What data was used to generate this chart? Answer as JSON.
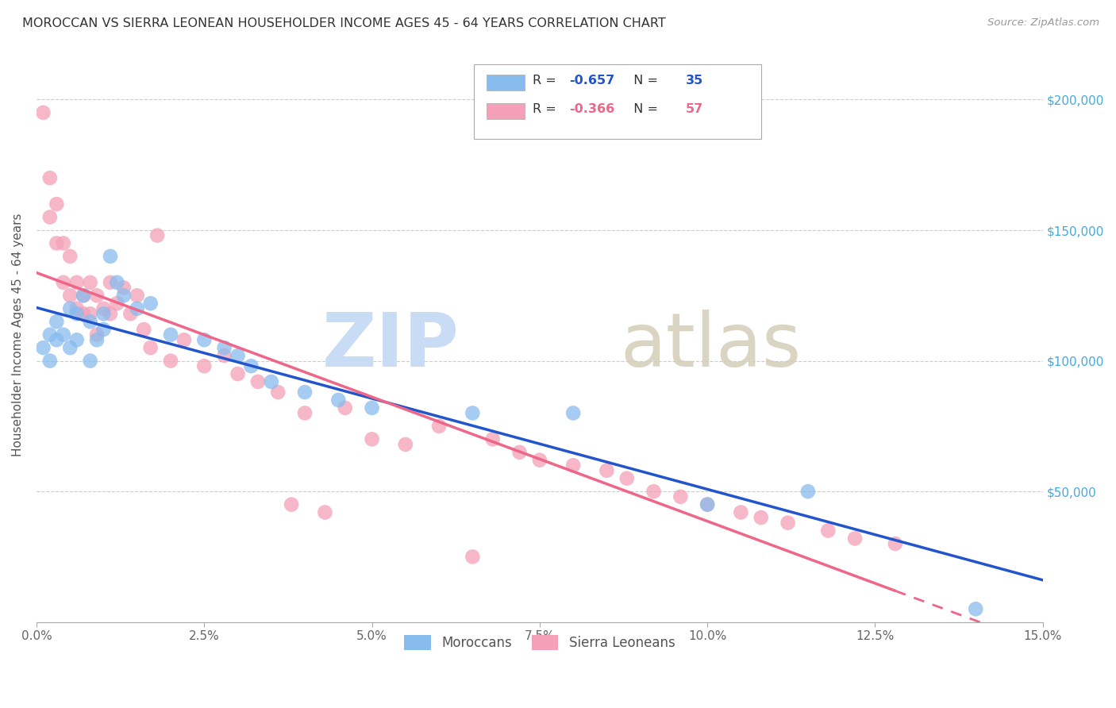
{
  "title": "MOROCCAN VS SIERRA LEONEAN HOUSEHOLDER INCOME AGES 45 - 64 YEARS CORRELATION CHART",
  "source": "Source: ZipAtlas.com",
  "ylabel": "Householder Income Ages 45 - 64 years",
  "xlim": [
    0.0,
    0.15
  ],
  "ylim": [
    0,
    220000
  ],
  "ytick_positions": [
    0,
    50000,
    100000,
    150000,
    200000
  ],
  "ytick_labels": [
    "",
    "$50,000",
    "$100,000",
    "$150,000",
    "$200,000"
  ],
  "xtick_positions": [
    0.0,
    0.025,
    0.05,
    0.075,
    0.1,
    0.125,
    0.15
  ],
  "xtick_labels": [
    "0.0%",
    "2.5%",
    "5.0%",
    "7.5%",
    "10.0%",
    "12.5%",
    "15.0%"
  ],
  "moroccan_color": "#88bbee",
  "sierra_color": "#f4a0b8",
  "moroccan_R": -0.657,
  "moroccan_N": 35,
  "sierra_R": -0.366,
  "sierra_N": 57,
  "moroccan_line_color": "#2255cc",
  "sierra_line_color": "#ee6688",
  "background_color": "#ffffff",
  "grid_color": "#cccccc",
  "moroccan_x": [
    0.001,
    0.002,
    0.002,
    0.003,
    0.003,
    0.004,
    0.005,
    0.005,
    0.006,
    0.006,
    0.007,
    0.008,
    0.008,
    0.009,
    0.01,
    0.01,
    0.011,
    0.012,
    0.013,
    0.015,
    0.017,
    0.02,
    0.025,
    0.028,
    0.03,
    0.032,
    0.035,
    0.04,
    0.045,
    0.05,
    0.065,
    0.08,
    0.1,
    0.115,
    0.14
  ],
  "moroccan_y": [
    105000,
    100000,
    110000,
    108000,
    115000,
    110000,
    120000,
    105000,
    118000,
    108000,
    125000,
    115000,
    100000,
    108000,
    112000,
    118000,
    140000,
    130000,
    125000,
    120000,
    122000,
    110000,
    108000,
    105000,
    102000,
    98000,
    92000,
    88000,
    85000,
    82000,
    80000,
    80000,
    45000,
    50000,
    5000
  ],
  "sierra_x": [
    0.001,
    0.002,
    0.002,
    0.003,
    0.003,
    0.004,
    0.004,
    0.005,
    0.005,
    0.006,
    0.006,
    0.007,
    0.007,
    0.008,
    0.008,
    0.009,
    0.009,
    0.01,
    0.011,
    0.011,
    0.012,
    0.013,
    0.014,
    0.015,
    0.016,
    0.017,
    0.018,
    0.02,
    0.022,
    0.025,
    0.028,
    0.03,
    0.033,
    0.036,
    0.038,
    0.04,
    0.043,
    0.046,
    0.05,
    0.055,
    0.06,
    0.065,
    0.068,
    0.072,
    0.075,
    0.08,
    0.085,
    0.088,
    0.092,
    0.096,
    0.1,
    0.105,
    0.108,
    0.112,
    0.118,
    0.122,
    0.128
  ],
  "sierra_y": [
    195000,
    170000,
    155000,
    160000,
    145000,
    145000,
    130000,
    140000,
    125000,
    130000,
    120000,
    125000,
    118000,
    130000,
    118000,
    125000,
    110000,
    120000,
    130000,
    118000,
    122000,
    128000,
    118000,
    125000,
    112000,
    105000,
    148000,
    100000,
    108000,
    98000,
    102000,
    95000,
    92000,
    88000,
    45000,
    80000,
    42000,
    82000,
    70000,
    68000,
    75000,
    25000,
    70000,
    65000,
    62000,
    60000,
    58000,
    55000,
    50000,
    48000,
    45000,
    42000,
    40000,
    38000,
    35000,
    32000,
    30000
  ]
}
